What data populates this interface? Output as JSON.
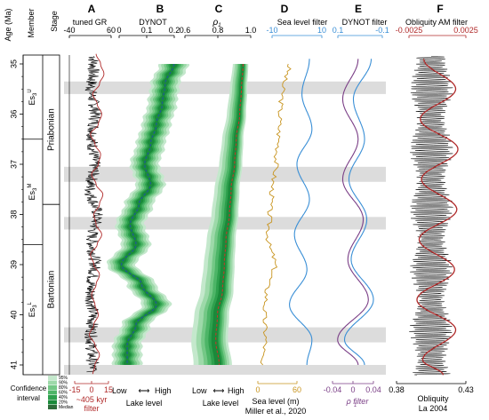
{
  "header": {
    "age_label": "Age (Ma)",
    "member_label": "Member",
    "stage_label": "Stage"
  },
  "stratigraphy": {
    "stages": [
      {
        "name": "Priabonian",
        "top": 34.8,
        "base": 37.8
      },
      {
        "name": "Bartonian",
        "top": 37.8,
        "base": 41.2
      }
    ],
    "members": [
      {
        "main": "Es",
        "sub": "3",
        "sup": "U",
        "top": 34.8,
        "base": 36.5
      },
      {
        "main": "Es",
        "sub": "3",
        "sup": "M",
        "top": 36.5,
        "base": 38.6
      },
      {
        "main": "Es",
        "sub": "3",
        "sup": "L",
        "top": 38.6,
        "base": 41.2
      }
    ]
  },
  "legend": {
    "title": "Confidence interval",
    "items": [
      {
        "label": "95%",
        "color": "#c4e8cc"
      },
      {
        "label": "90%",
        "color": "#9dd9a9"
      },
      {
        "label": "80%",
        "color": "#74c886"
      },
      {
        "label": "60%",
        "color": "#4db567"
      },
      {
        "label": "40%",
        "color": "#2ea04d"
      },
      {
        "label": "20%",
        "color": "#1a8a3a"
      },
      {
        "label": "Median",
        "color": "#2e6b3a"
      }
    ]
  },
  "annotations": {
    "lake_level_B": "Lake level",
    "lake_level_C": "Lake level",
    "low": "Low",
    "high": "High",
    "sea_level_caption": "Sea level (m)",
    "sea_level_source": "Miller et al., 2020",
    "kyr_filter_line1": "~405 kyr",
    "kyr_filter_line2": "filter",
    "obliquity_caption_line1": "Obliquity",
    "obliquity_caption_line2": "La 2004",
    "rho_filter": "ρ  filter",
    "rho_sub": "1"
  },
  "chart_data": [
    {
      "panel": "A",
      "type": "line",
      "title": "tuned GR",
      "ylabel": "Age (Ma)",
      "ylim": [
        34.8,
        41.2
      ],
      "yticks": [
        35,
        36,
        37,
        38,
        39,
        40,
        41
      ],
      "x_top_range": [
        -40,
        60
      ],
      "x_top_ticks": [
        "-40",
        "60"
      ],
      "x_bottom_range": [
        -15,
        15
      ],
      "x_bottom_ticks": [
        "-15",
        "0",
        "15"
      ],
      "series": [
        {
          "name": "tuned GR",
          "color": "#111111",
          "age": [
            35.0,
            35.5,
            36.0,
            36.5,
            37.0,
            37.5,
            38.0,
            38.5,
            39.0,
            39.5,
            40.0,
            40.5,
            41.0
          ],
          "values": [
            18,
            12,
            22,
            15,
            20,
            10,
            26,
            14,
            21,
            10,
            16,
            12,
            15
          ]
        },
        {
          "name": "~405 kyr filter",
          "color": "#b02a2a",
          "age": [
            34.8,
            35.0,
            35.2,
            35.4,
            35.6,
            35.8,
            36.0,
            36.2,
            36.4,
            36.6,
            36.8,
            37.0,
            37.2,
            37.4,
            37.6,
            37.8,
            38.0,
            38.2,
            38.4,
            38.6,
            38.8,
            39.0,
            39.2,
            39.4,
            39.6,
            39.8,
            40.0,
            40.2,
            40.4,
            40.6,
            40.8,
            41.0,
            41.2
          ],
          "values": [
            4,
            8,
            11,
            7,
            1,
            5,
            9,
            6,
            -1,
            3,
            8,
            6,
            0,
            4,
            10,
            7,
            2,
            4,
            9,
            5,
            -1,
            2,
            7,
            4,
            0,
            3,
            6,
            2,
            -2,
            3,
            7,
            3,
            1
          ]
        }
      ]
    },
    {
      "panel": "B",
      "type": "area",
      "title": "DYNOT",
      "xlim": [
        0.0,
        0.25
      ],
      "x_ticks": [
        "0",
        "0.1",
        "0.2"
      ],
      "x_bottom_label": "Lake level",
      "age": [
        35.0,
        35.4,
        35.8,
        36.2,
        36.6,
        37.0,
        37.4,
        37.8,
        38.2,
        38.6,
        39.0,
        39.4,
        39.8,
        40.2,
        40.6,
        41.0
      ],
      "median": [
        0.2,
        0.17,
        0.16,
        0.14,
        0.12,
        0.1,
        0.12,
        0.08,
        0.05,
        0.07,
        0.02,
        0.09,
        0.14,
        0.07,
        0.04,
        0.04
      ]
    },
    {
      "panel": "C",
      "type": "area",
      "title": "ρ",
      "title_sub": "1",
      "xlim": [
        0.6,
        1.0
      ],
      "x_ticks": [
        "0.6",
        "0.8",
        "1.0"
      ],
      "x_bottom_label": "Lake level",
      "age": [
        35.0,
        35.5,
        36.0,
        36.5,
        37.0,
        37.5,
        38.0,
        38.5,
        39.0,
        39.5,
        40.0,
        40.5,
        41.0
      ],
      "median": [
        0.94,
        0.93,
        0.92,
        0.9,
        0.89,
        0.87,
        0.86,
        0.84,
        0.83,
        0.82,
        0.79,
        0.78,
        0.8
      ]
    },
    {
      "panel": "D",
      "type": "line",
      "title": "Sea level filter",
      "x_top_range": [
        -10,
        10
      ],
      "x_top_ticks": [
        "-10",
        "10"
      ],
      "x_bottom_range": [
        0,
        60
      ],
      "x_bottom_ticks": [
        "0",
        "60"
      ],
      "series": [
        {
          "name": "Sea level (m)",
          "color": "#c8941e",
          "age": [
            35.0,
            35.5,
            36.0,
            36.5,
            37.0,
            37.5,
            38.0,
            38.5,
            39.0,
            39.5,
            40.0,
            40.5,
            41.0
          ],
          "values": [
            48,
            38,
            34,
            32,
            28,
            22,
            18,
            16,
            26,
            14,
            10,
            12,
            4
          ]
        },
        {
          "name": "Sea level filter",
          "color": "#3a8fd6",
          "age": [
            34.9,
            35.6,
            36.3,
            37.0,
            37.7,
            38.4,
            39.1,
            39.8,
            40.5,
            41.0
          ],
          "values": [
            5,
            2,
            6,
            0,
            5,
            -1,
            4,
            -3,
            6,
            4
          ]
        }
      ]
    },
    {
      "panel": "E",
      "type": "line",
      "title": "DYNOT filter",
      "x_top_range": [
        0.1,
        -0.1
      ],
      "x_top_ticks": [
        "0.1",
        "-0.1"
      ],
      "x_bottom_range": [
        -0.04,
        0.04
      ],
      "x_bottom_ticks": [
        "-0.04",
        "0",
        "0.04"
      ],
      "series": [
        {
          "name": "DYNOT filter",
          "color": "#3a8fd6",
          "age": [
            34.9,
            35.7,
            36.5,
            37.3,
            38.1,
            38.9,
            39.7,
            40.5,
            41.0
          ],
          "values": [
            -0.05,
            0.03,
            -0.02,
            0.05,
            -0.03,
            0.04,
            -0.06,
            0.07,
            -0.02
          ]
        },
        {
          "name": "ρ1 filter",
          "color": "#7a3e86",
          "age": [
            34.9,
            35.7,
            36.5,
            37.3,
            38.1,
            38.9,
            39.7,
            40.5,
            41.0
          ],
          "values": [
            0.01,
            -0.02,
            0.01,
            -0.02,
            0.02,
            -0.01,
            0.03,
            -0.03,
            0.01
          ]
        }
      ]
    },
    {
      "panel": "F",
      "type": "line",
      "title": "Obliquity AM filter",
      "x_top_range": [
        -0.0025,
        0.0025
      ],
      "x_top_ticks": [
        "-0.0025",
        "0.0025"
      ],
      "x_bottom_range": [
        0.38,
        0.43
      ],
      "x_bottom_ticks": [
        "0.38",
        "0.43"
      ],
      "series": [
        {
          "name": "Obliquity La 2004",
          "color": "#111111",
          "period_ma": 0.041,
          "mean": 0.405,
          "amplitude": 0.013
        },
        {
          "name": "Obliquity AM filter",
          "color": "#b02a2a",
          "age": [
            34.9,
            35.5,
            36.1,
            36.7,
            37.3,
            37.9,
            38.5,
            39.1,
            39.7,
            40.3,
            40.9,
            41.2
          ],
          "values": [
            -0.0012,
            0.0016,
            -0.0015,
            0.0018,
            -0.0014,
            0.0017,
            -0.0016,
            0.0015,
            -0.0018,
            0.0016,
            -0.0013,
            0.0005
          ]
        }
      ]
    }
  ],
  "gray_bands": [
    {
      "top": 35.35,
      "base": 35.6
    },
    {
      "top": 37.05,
      "base": 37.35
    },
    {
      "top": 38.05,
      "base": 38.3
    },
    {
      "top": 40.25,
      "base": 40.55
    },
    {
      "top": 41.0,
      "base": 41.3
    }
  ]
}
